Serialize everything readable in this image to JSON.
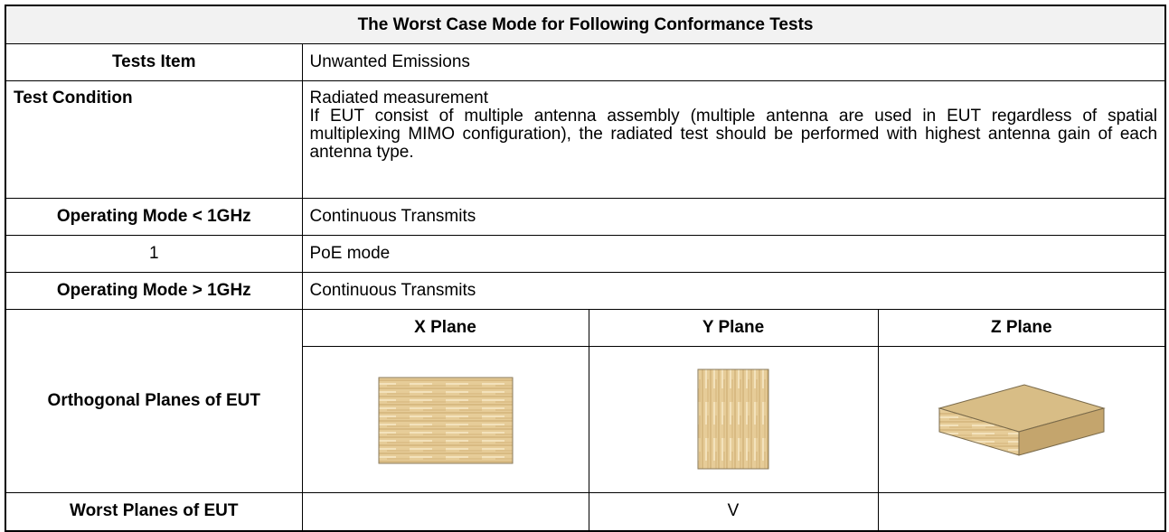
{
  "title": "The Worst Case Mode for Following Conformance Tests",
  "rows": [
    {
      "label": "Tests Item",
      "value": "Unwanted Emissions"
    },
    {
      "label": "Test Condition",
      "value": "Radiated measurement",
      "note": "If EUT consist of multiple antenna assembly (multiple antenna are used in EUT regardless of spatial multiplexing MIMO configuration), the radiated test should be performed with highest antenna gain of each antenna type."
    },
    {
      "label": "Operating Mode < 1GHz",
      "value": "Continuous Transmits"
    },
    {
      "label": "1",
      "value": "PoE mode"
    },
    {
      "label": "Operating Mode > 1GHz",
      "value": "Continuous Transmits"
    }
  ],
  "planes": {
    "label": "Orthogonal Planes of EUT",
    "headers": [
      "X Plane",
      "Y Plane",
      "Z Plane"
    ]
  },
  "worst": {
    "label": "Worst Planes of EUT",
    "values": [
      null,
      "V",
      null
    ]
  }
}
